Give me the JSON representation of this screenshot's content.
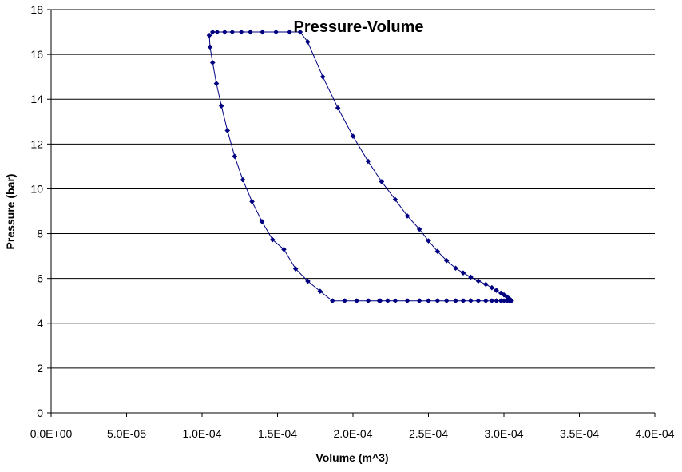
{
  "chart_data": {
    "type": "line",
    "title": "Pressure-Volume",
    "xlabel": "Volume (m^3)",
    "ylabel": "Pressure (bar)",
    "xlim": [
      0,
      0.0004
    ],
    "ylim": [
      0,
      18
    ],
    "x_ticks": [
      "0.0E+00",
      "5.0E-05",
      "1.0E-04",
      "1.5E-04",
      "2.0E-04",
      "2.5E-04",
      "3.0E-04",
      "3.5E-04",
      "4.0E-04"
    ],
    "y_ticks": [
      "0",
      "2",
      "4",
      "6",
      "8",
      "10",
      "12",
      "14",
      "16",
      "18"
    ],
    "grid": "horizontal",
    "legend": "none",
    "line_color": "#000080",
    "marker": "diamond",
    "series": [
      {
        "x": [
          0.0001048,
          0.0001053,
          0.000107,
          0.0001095,
          0.0001128,
          0.0001168,
          0.0001216,
          0.000127,
          0.0001331,
          0.0001397,
          0.0001467,
          0.0001542,
          0.000162,
          0.0001701,
          0.0001782,
          0.0001864,
          0.0001945,
          0.0002025,
          0.0002101,
          0.0002174,
          0.000218,
          0.000223,
          0.000228,
          0.000236,
          0.000244,
          0.00025,
          0.000256,
          0.000262,
          0.000268,
          0.000273,
          0.000278,
          0.000283,
          0.000288,
          0.000292,
          0.000295,
          0.000298,
          0.0003,
          0.000302,
          0.0003035,
          0.0003045,
          0.000305,
          0.0003045,
          0.0003035,
          0.000302,
          0.0003,
          0.000298,
          0.000295,
          0.000292,
          0.000288,
          0.000283,
          0.000278,
          0.000273,
          0.000268,
          0.000262,
          0.000256,
          0.00025,
          0.000244,
          0.000236,
          0.000228,
          0.000219,
          0.00021,
          0.0002,
          0.00019,
          0.00018,
          0.00017,
          0.000165,
          0.000158,
          0.000149,
          0.00014,
          0.000132,
          0.000126,
          0.00012,
          0.000115,
          0.00011,
          0.000107,
          0.0001048
        ],
        "y": [
          16.85,
          16.33,
          15.63,
          14.7,
          13.7,
          12.6,
          11.45,
          10.4,
          9.43,
          8.54,
          7.73,
          7.3,
          6.43,
          5.88,
          5.43,
          5.0,
          5.0,
          5.0,
          5.0,
          5.0,
          5.0,
          5.0,
          5.0,
          5.0,
          5.0,
          5.0,
          5.0,
          5.0,
          5.0,
          5.0,
          5.0,
          5.0,
          5.0,
          5.0,
          5.0,
          5.0,
          5.0,
          5.0,
          5.0,
          5.0,
          5.0,
          5.04,
          5.1,
          5.18,
          5.27,
          5.35,
          5.47,
          5.59,
          5.74,
          5.89,
          6.06,
          6.25,
          6.46,
          6.8,
          7.21,
          7.68,
          8.2,
          8.79,
          9.52,
          10.32,
          11.23,
          12.35,
          13.61,
          15.0,
          16.56,
          17.0,
          17.0,
          17.0,
          17.0,
          17.0,
          17.0,
          17.0,
          17.0,
          17.0,
          17.0,
          16.85
        ]
      }
    ]
  }
}
